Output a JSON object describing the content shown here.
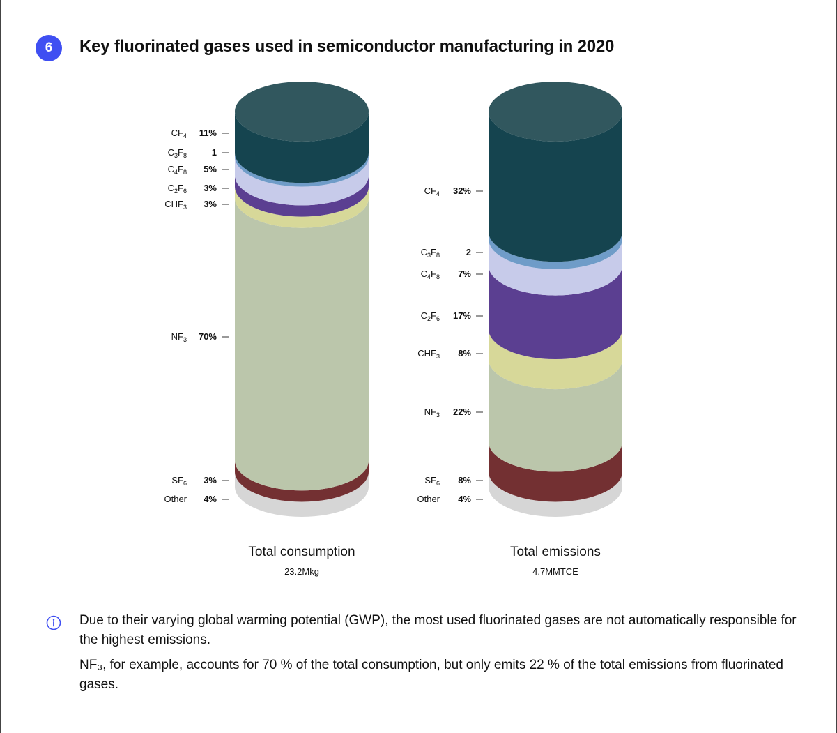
{
  "figure": {
    "number": "6",
    "title": "Key fluorinated gases used in semiconductor manufacturing in 2020"
  },
  "chart_data": [
    {
      "type": "bar",
      "title": "Total consumption",
      "subtitle": "23.2Mkg",
      "unit": "%",
      "categories": [
        "CF4",
        "C3F8",
        "C4F8",
        "C2F6",
        "CHF3",
        "NF3",
        "SF6",
        "Other"
      ],
      "values": [
        11,
        1,
        5,
        3,
        3,
        70,
        3,
        4
      ],
      "value_labels": [
        "11%",
        "1",
        "5%",
        "3%",
        "3%",
        "70%",
        "3%",
        "4%"
      ]
    },
    {
      "type": "bar",
      "title": "Total emissions",
      "subtitle": "4.7MMTCE",
      "unit": "%",
      "categories": [
        "CF4",
        "C3F8",
        "C4F8",
        "C2F6",
        "CHF3",
        "NF3",
        "SF6",
        "Other"
      ],
      "values": [
        32,
        2,
        7,
        17,
        8,
        22,
        8,
        4
      ],
      "value_labels": [
        "32%",
        "2",
        "7%",
        "17%",
        "8%",
        "22%",
        "8%",
        "4%"
      ]
    }
  ],
  "gas_labels": [
    {
      "base": "CF",
      "sub": "4"
    },
    {
      "base": "C",
      "sub": "3",
      "base2": "F",
      "sub2": "8"
    },
    {
      "base": "C",
      "sub": "4",
      "base2": "F",
      "sub2": "8"
    },
    {
      "base": "C",
      "sub": "2",
      "base2": "F",
      "sub2": "6"
    },
    {
      "base": "CHF",
      "sub": "3"
    },
    {
      "base": "NF",
      "sub": "3"
    },
    {
      "base": "SF",
      "sub": "6"
    },
    {
      "base": "Other"
    }
  ],
  "colors": {
    "badge": "#3f4ff2",
    "CF4": "#15444f",
    "CF4_top": "#31575e",
    "C3F8": "#6f9cc8",
    "C4F8": "#c7cbea",
    "C2F6": "#5b3f91",
    "CHF3": "#d7d899",
    "NF3": "#bbc6ab",
    "SF6": "#733032",
    "Other": "#d6d6d6"
  },
  "notes": [
    "Due to their varying global warming potential (GWP), the most used fluorinated gases are not automatically responsible for the highest emissions.",
    "NF₃, for example, accounts for 70 % of the total consumption, but only emits 22 % of the total emissions from fluorinated gases."
  ]
}
